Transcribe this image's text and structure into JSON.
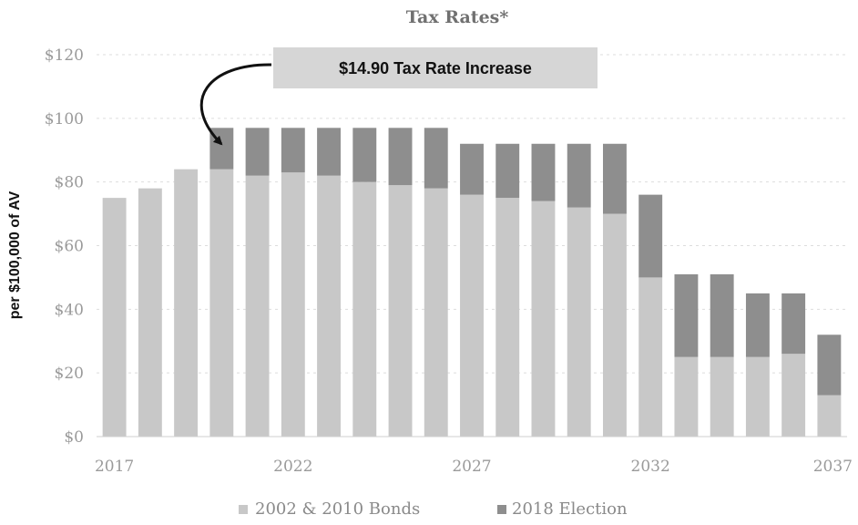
{
  "chart_data": {
    "type": "bar",
    "stacked": true,
    "title": "Tax Rates*",
    "ylabel": "per $100,000 of AV",
    "xlabel": "",
    "ylim": [
      0,
      120
    ],
    "y_ticks": [
      "$0",
      "$20",
      "$40",
      "$60",
      "$80",
      "$100",
      "$120"
    ],
    "y_tick_values": [
      0,
      20,
      40,
      60,
      80,
      100,
      120
    ],
    "x_tick_labels": [
      "2017",
      "2022",
      "2027",
      "2032",
      "2037"
    ],
    "x_tick_values": [
      2017,
      2022,
      2027,
      2032,
      2037
    ],
    "grid": true,
    "legend_position": "bottom",
    "categories": [
      2017,
      2018,
      2019,
      2020,
      2021,
      2022,
      2023,
      2024,
      2025,
      2026,
      2027,
      2028,
      2029,
      2030,
      2031,
      2032,
      2033,
      2034,
      2035,
      2036,
      2037
    ],
    "series": [
      {
        "name": "2002 & 2010 Bonds",
        "color": "#c8c8c8",
        "values": [
          75,
          78,
          84,
          84,
          82,
          83,
          82,
          80,
          79,
          78,
          76,
          75,
          74,
          72,
          70,
          50,
          25,
          25,
          25,
          26,
          13
        ]
      },
      {
        "name": "2018 Election",
        "color": "#8e8e8e",
        "values": [
          0,
          0,
          0,
          13,
          15,
          14,
          15,
          17,
          18,
          19,
          16,
          17,
          18,
          20,
          22,
          26,
          26,
          26,
          20,
          19,
          19
        ]
      }
    ],
    "annotation": {
      "text": "$14.90 Tax Rate Increase",
      "arrow_points_to": 2020
    }
  },
  "colors": {
    "annotation_box": "#d6d6d6",
    "grid": "#dddddd",
    "arrow": "#111111"
  }
}
